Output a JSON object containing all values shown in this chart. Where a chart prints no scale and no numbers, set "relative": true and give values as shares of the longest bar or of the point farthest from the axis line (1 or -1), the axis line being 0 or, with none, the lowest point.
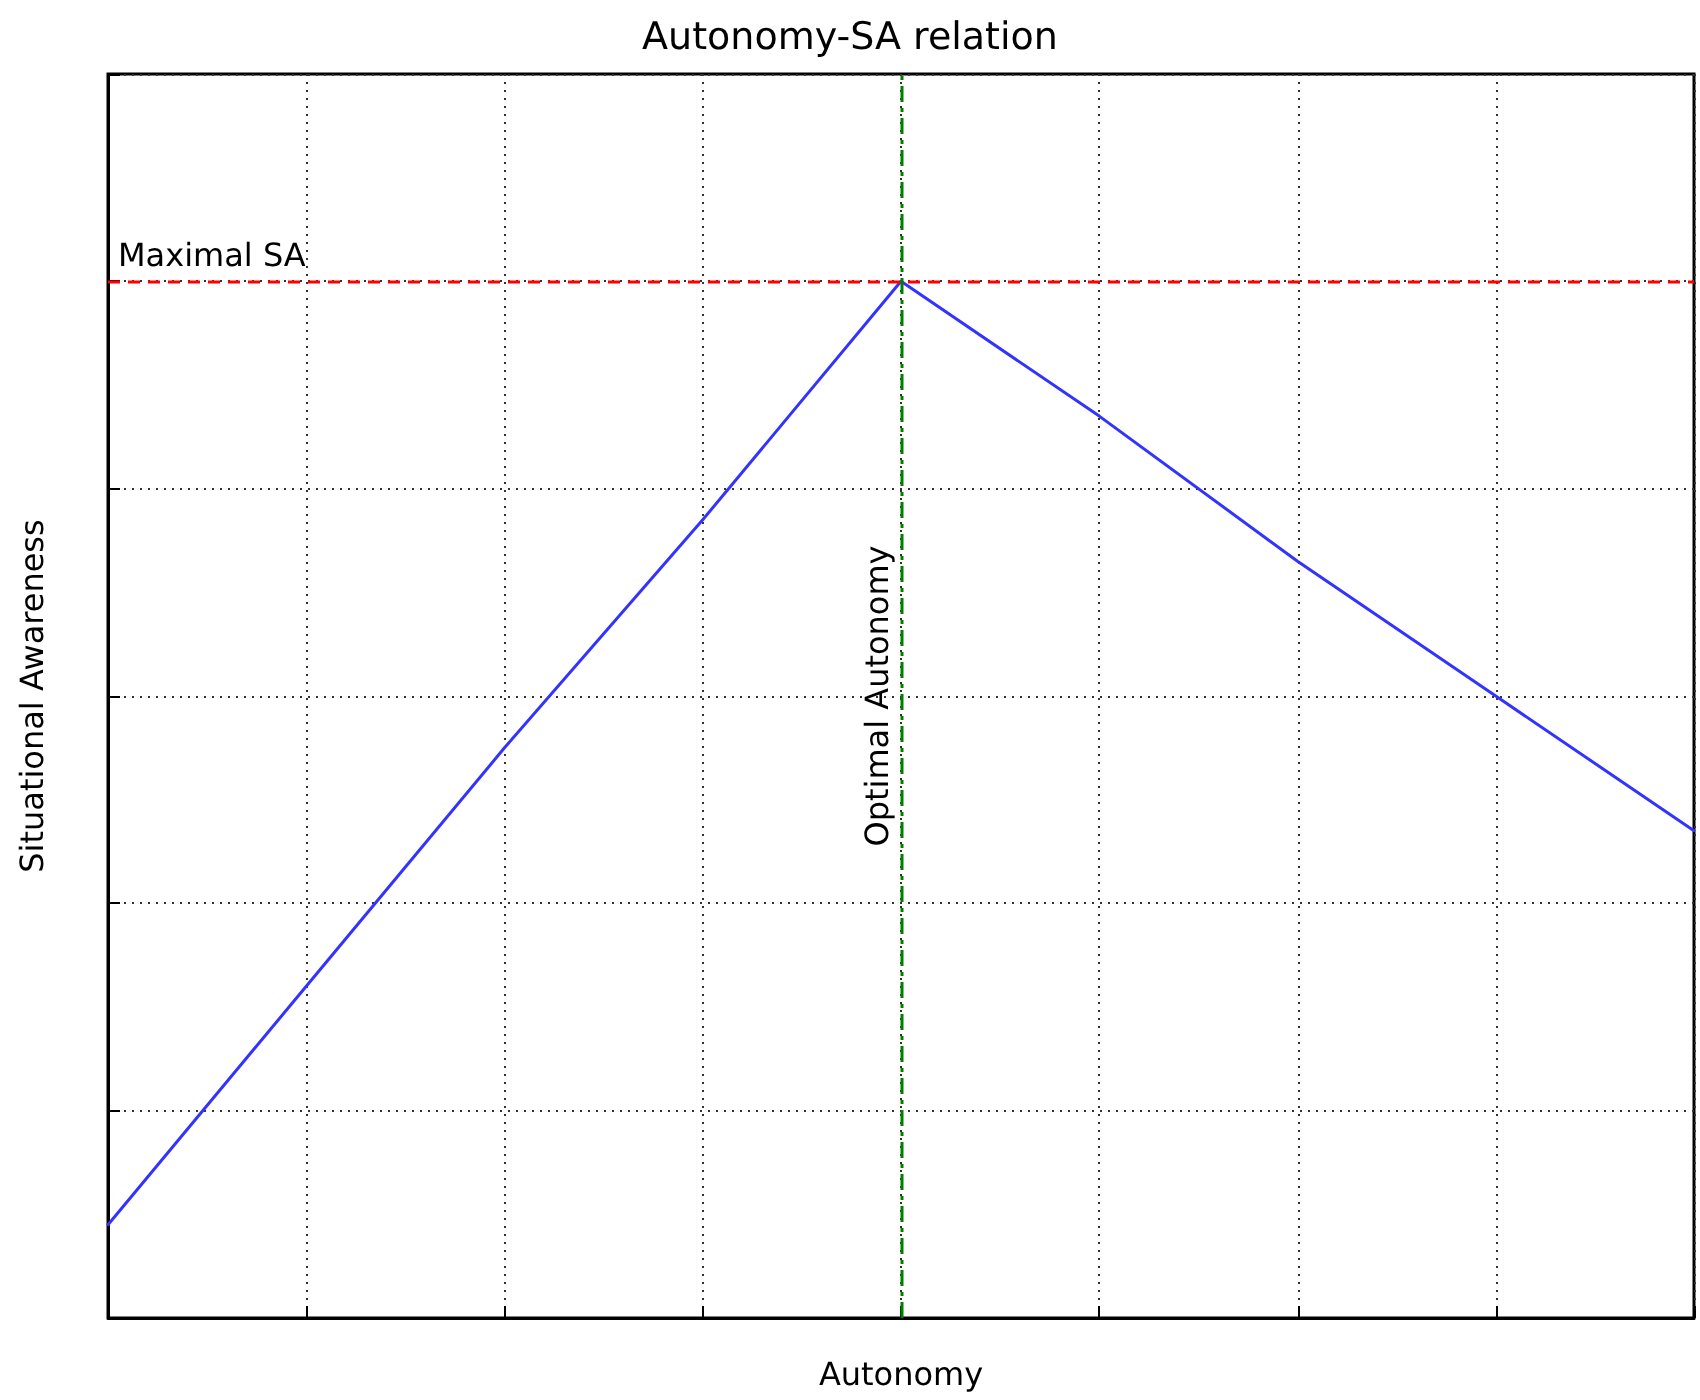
{
  "chart_data": {
    "type": "line",
    "title": "Autonomy-SA relation",
    "xlabel": "Autonomy",
    "ylabel": "Situational Awareness",
    "categories": [
      null,
      null,
      null,
      null,
      null,
      null,
      null,
      null,
      null
    ],
    "series": [
      {
        "color": "#3333ff",
        "values": [
          0.09,
          0.32,
          0.55,
          0.77,
          1,
          0.87,
          0.73,
          0.6,
          0.47
        ]
      }
    ],
    "relative": true,
    "grid": true,
    "marker": "none",
    "line_style": "solid",
    "annotations": [
      "Optimal Autonomy"
    ],
    "ref_lines": [
      {
        "axis": "y",
        "value": 1,
        "label": "Maximal SA",
        "color": "#ff0000",
        "line_style": "dashed"
      }
    ]
  }
}
